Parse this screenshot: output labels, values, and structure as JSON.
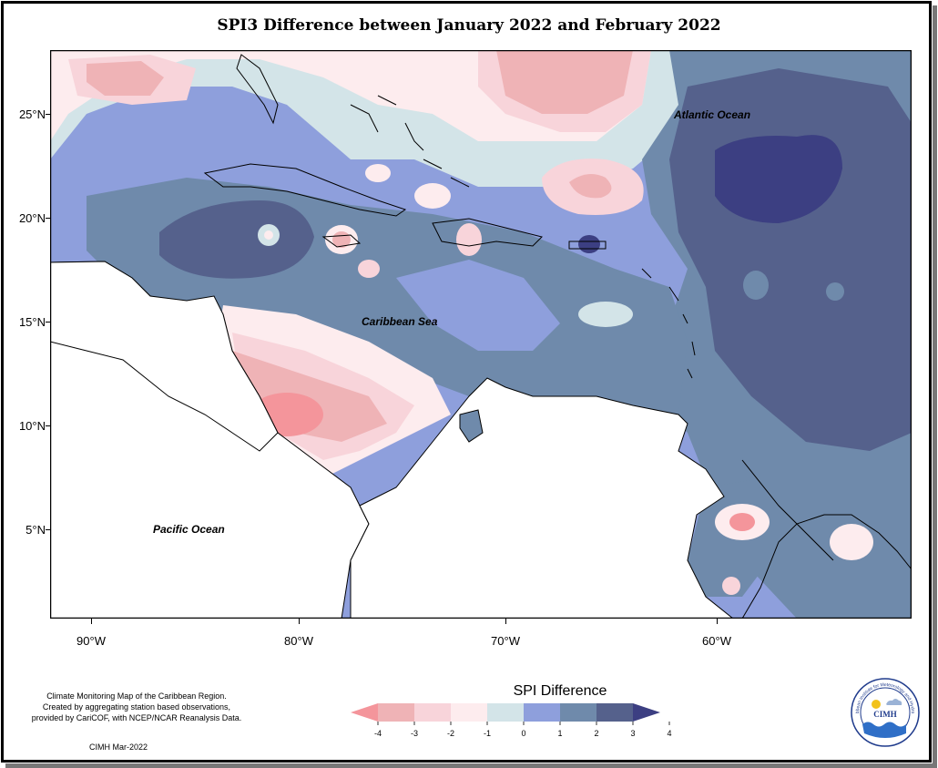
{
  "title": "SPI3 Difference between January 2022 and February 2022",
  "map": {
    "latitude_labels": [
      "25°N",
      "20°N",
      "15°N",
      "10°N",
      "5°N"
    ],
    "longitude_labels": [
      "90°W",
      "80°W",
      "70°W",
      "60°W"
    ],
    "ocean_labels": {
      "atlantic": "Atlantic Ocean",
      "caribbean": "Caribbean Sea",
      "pacific": "Pacific Ocean"
    }
  },
  "legend": {
    "title": "SPI Difference",
    "ticks": [
      "-4",
      "-3",
      "-2",
      "-1",
      "0",
      "1",
      "2",
      "3",
      "4"
    ],
    "colors": [
      "#f4959b",
      "#efb3b6",
      "#f8d4da",
      "#fdecee",
      "#d3e4e8",
      "#8e9fdc",
      "#6f8aab",
      "#55618c",
      "#3c3f82"
    ]
  },
  "credit": {
    "lines": [
      "Climate Monitoring Map of the Caribbean Region.",
      "Created by aggregating station based observations,",
      "provided by CariCOF, with NCEP/NCAR Reanalysis Data."
    ],
    "date": "CIMH Mar-2022"
  },
  "logo": {
    "text": "CIMH",
    "ring_text": "Caribbean Institute for Meteorology and Hydrology"
  }
}
